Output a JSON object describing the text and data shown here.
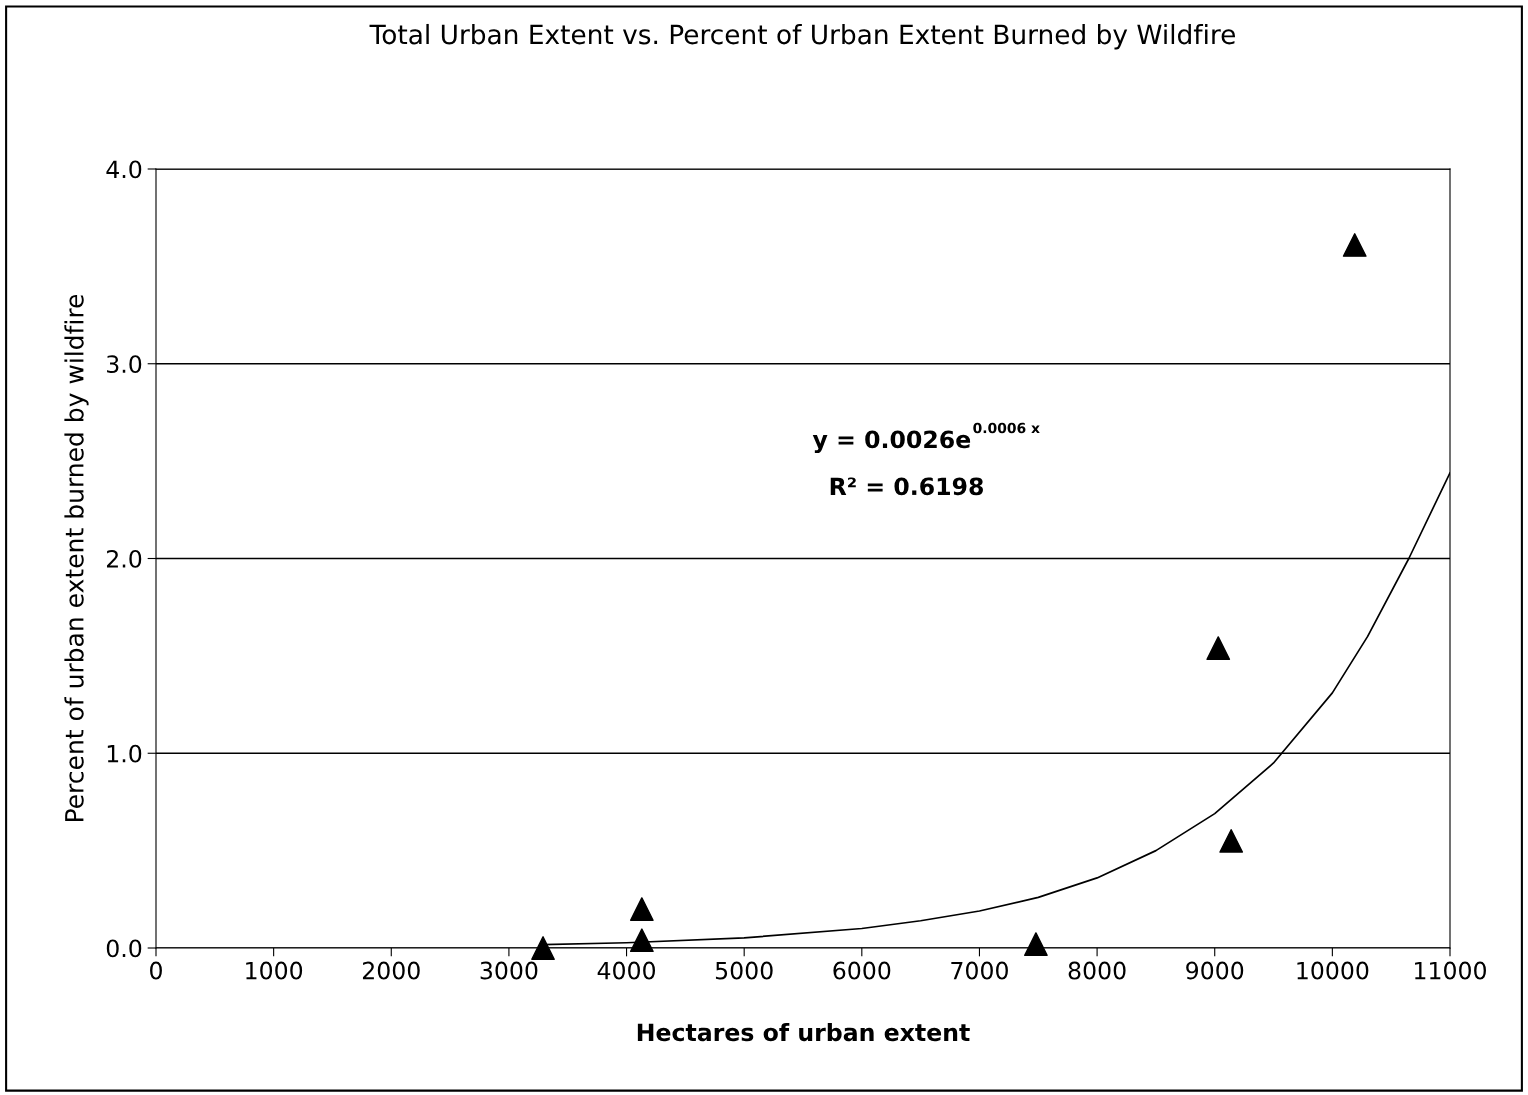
{
  "chart_data": {
    "type": "scatter",
    "title": "Total Urban Extent vs. Percent of Urban Extent Burned by Wildfire",
    "xlabel": "Hectares of urban extent",
    "ylabel": "Percent of urban extent burned by wildfire",
    "series": [
      {
        "color": "#000000",
        "marker": "triangle",
        "x": [
          3290,
          4130,
          4130,
          7480,
          9030,
          9140,
          10190
        ],
        "values": [
          0.0,
          0.2,
          0.04,
          0.02,
          1.54,
          0.55,
          3.61
        ]
      },
      {
        "type": "line",
        "color": "#000000",
        "marker": "none",
        "line_style": "solid",
        "x": [
          3290,
          4000,
          5000,
          6000,
          6500,
          7000,
          7500,
          8000,
          8500,
          9000,
          9500,
          10000,
          10300,
          10650,
          11000
        ],
        "values": [
          0.017,
          0.027,
          0.052,
          0.1,
          0.14,
          0.19,
          0.26,
          0.36,
          0.5,
          0.69,
          0.95,
          1.31,
          1.6,
          2.0,
          2.44
        ]
      }
    ],
    "annotations": [
      "y = 0.0026e$^{0.0006 x}$",
      "R² = 0.6198"
    ],
    "xlim": [
      0,
      11000
    ],
    "xticks": [
      0,
      1000,
      2000,
      3000,
      4000,
      5000,
      6000,
      7000,
      8000,
      9000,
      10000,
      11000
    ],
    "ylim": [
      0,
      4
    ],
    "yticks": [
      {
        "value": 0,
        "label": "0.0"
      },
      {
        "value": 1,
        "label": "1.0"
      },
      {
        "value": 2,
        "label": "2.0"
      },
      {
        "value": 3,
        "label": "3.0"
      },
      {
        "value": 4,
        "label": "4.0"
      }
    ],
    "grid": "y",
    "legend": false
  }
}
